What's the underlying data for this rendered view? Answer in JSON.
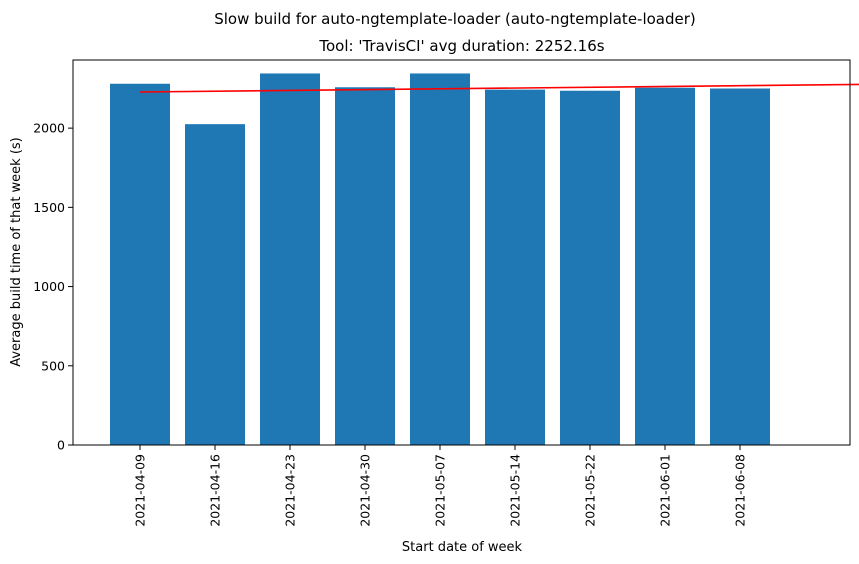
{
  "chart_data": {
    "type": "bar",
    "suptitle": "Slow build for auto-ngtemplate-loader (auto-ngtemplate-loader)",
    "title": "Tool: 'TravisCI' avg duration: 2252.16s",
    "xlabel": "Start date of week",
    "ylabel": "Average build time of that week (s)",
    "categories": [
      "2021-04-09",
      "2021-04-16",
      "2021-04-23",
      "2021-04-30",
      "2021-05-07",
      "2021-05-14",
      "2021-05-22",
      "2021-06-01",
      "2021-06-08"
    ],
    "values": [
      2280,
      2025,
      2345,
      2258,
      2345,
      2243,
      2236,
      2255,
      2250
    ],
    "trend_line": {
      "color": "#ff0000",
      "x": [
        "2021-04-09",
        "2021-06-18"
      ],
      "y": [
        2228,
        2278
      ]
    },
    "bar_color": "#1f77b4",
    "ylim": [
      0,
      2430
    ],
    "yticks": [
      0,
      500,
      1000,
      1500,
      2000
    ],
    "grid": false,
    "legend": "none"
  }
}
